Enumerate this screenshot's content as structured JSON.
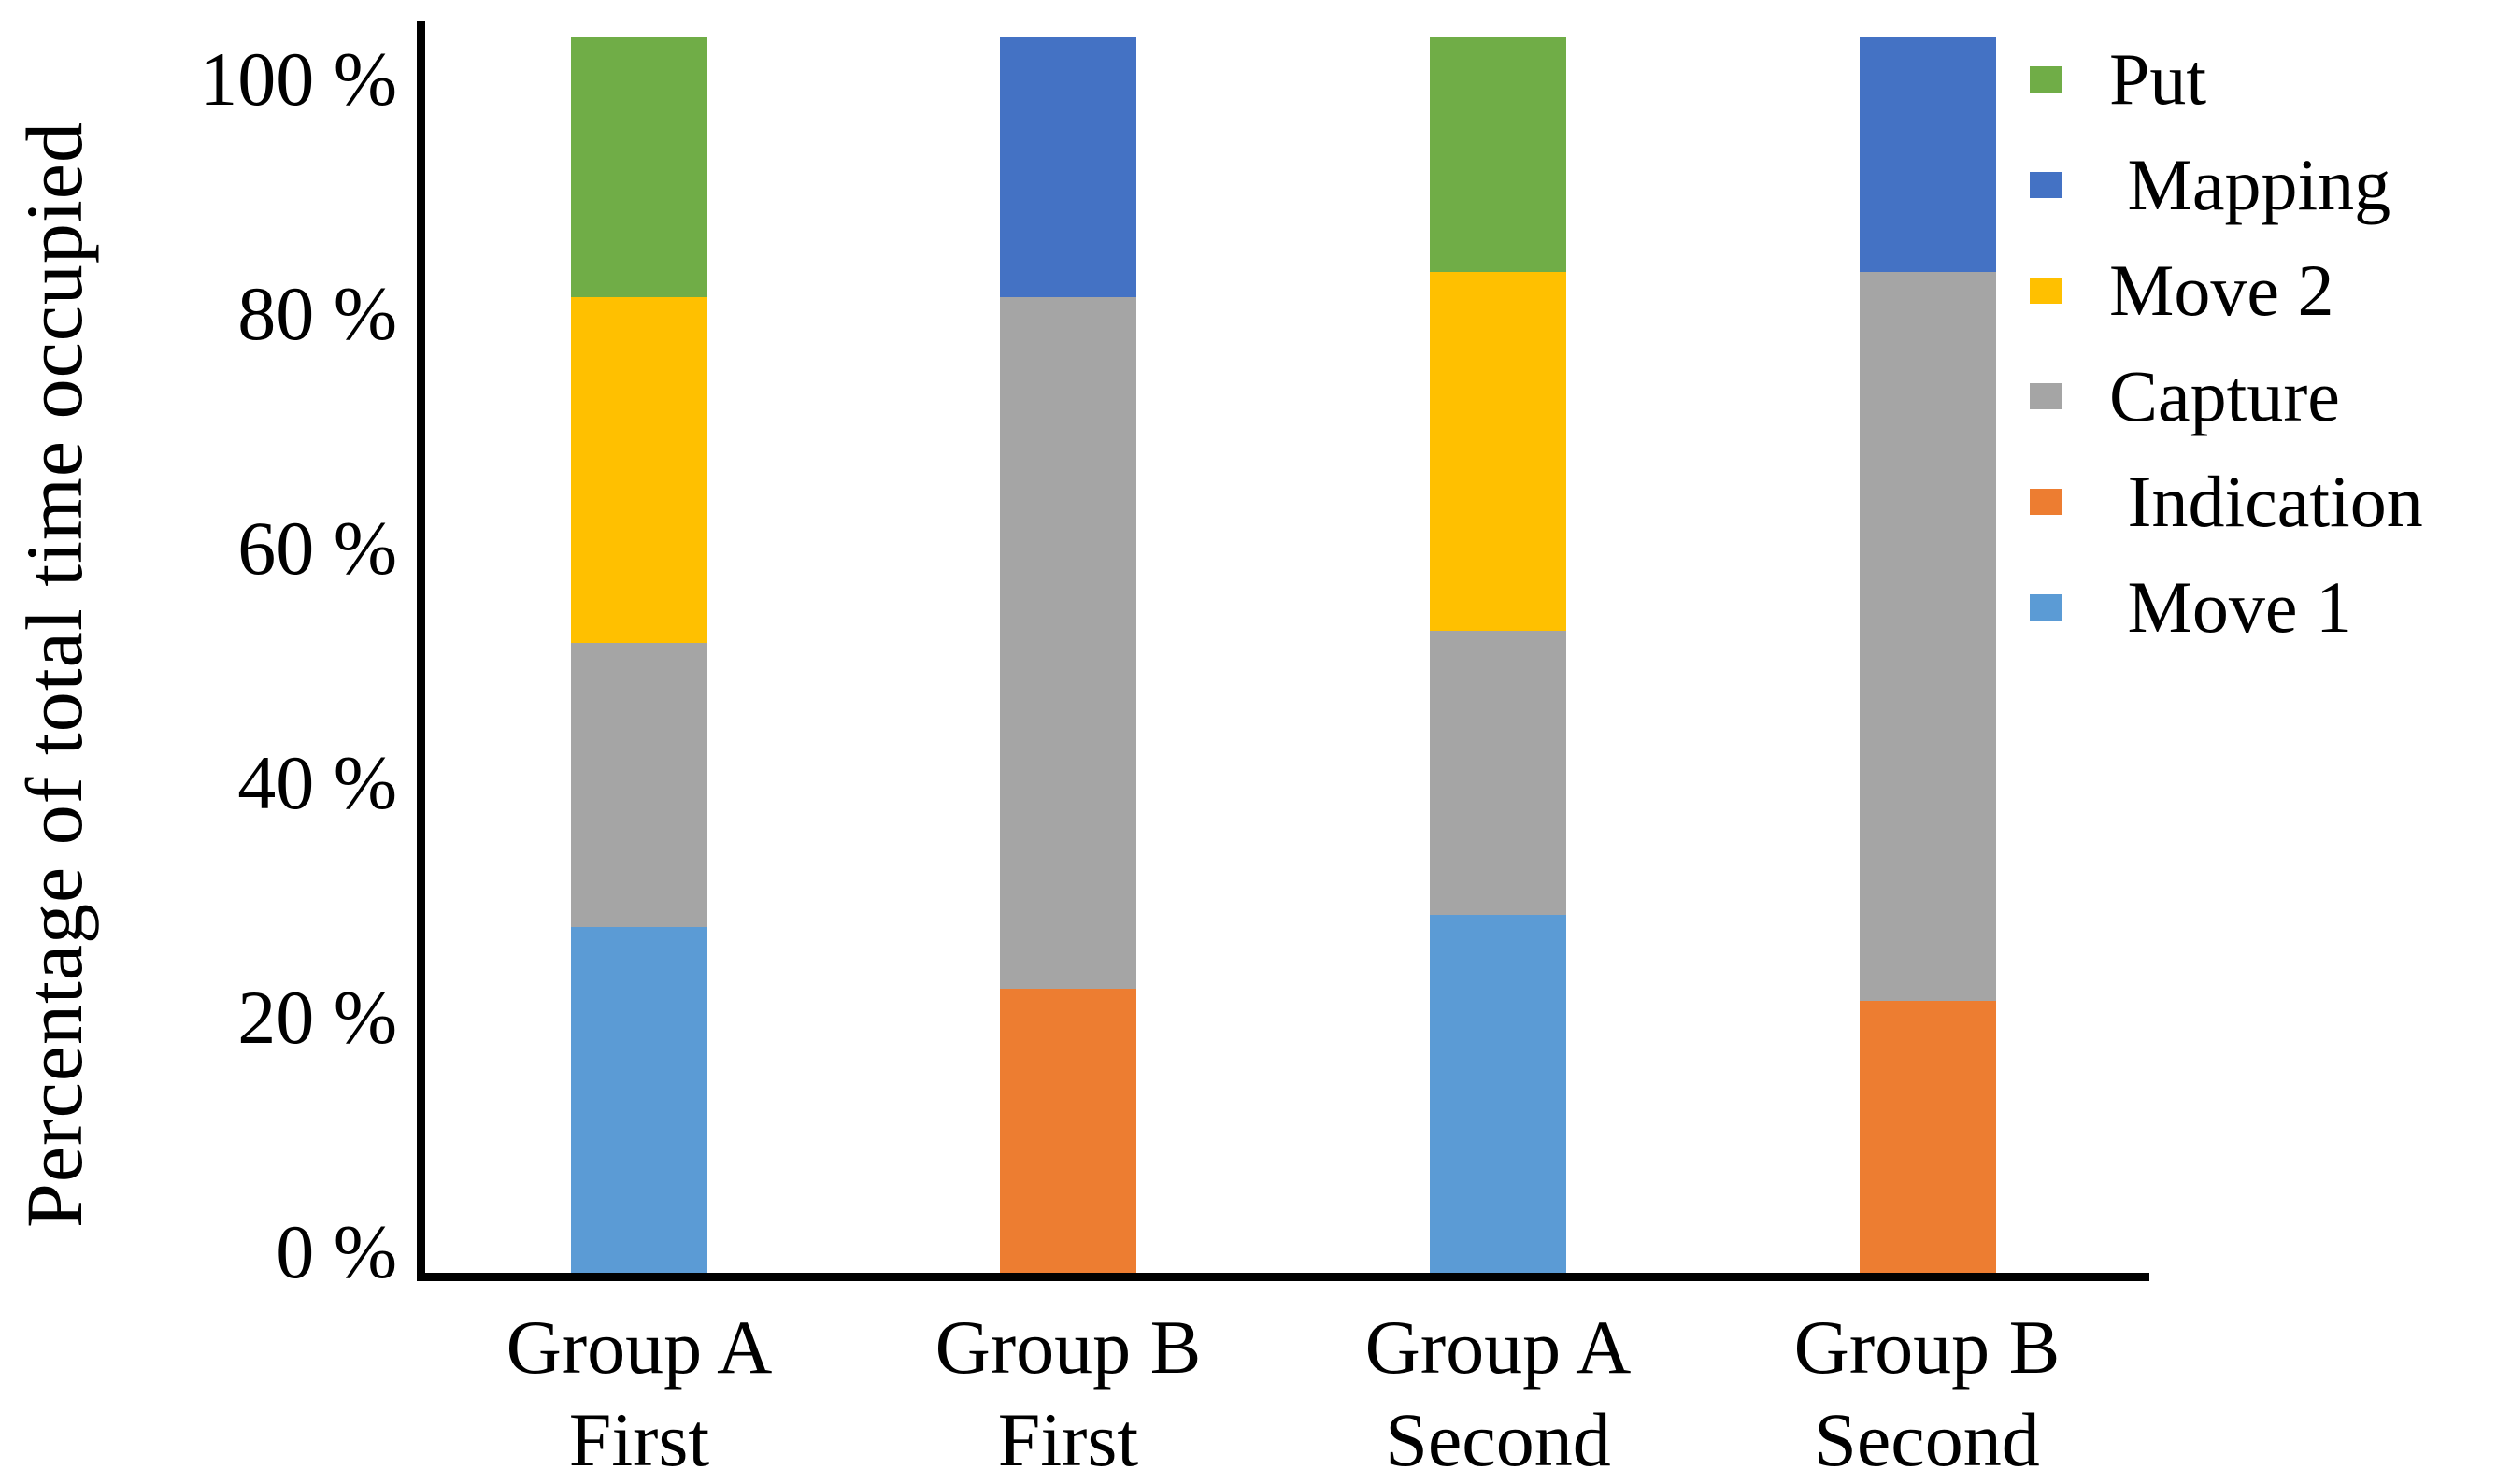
{
  "chart_data": {
    "type": "bar",
    "variant": "stacked-100-percent",
    "title": "",
    "xlabel": "",
    "ylabel": "Percentage of total time occupied",
    "ylim": [
      0,
      100
    ],
    "grid": false,
    "legend_position": "top-right",
    "ytick_values": [
      100,
      80,
      60,
      40,
      20,
      0
    ],
    "ytick_labels": [
      "100 %",
      "80 %",
      "60 %",
      "40 %",
      "20 %",
      "0 %"
    ],
    "categories": [
      {
        "id": "group-a-first",
        "line1": "Group A",
        "line2": "First"
      },
      {
        "id": "group-b-first",
        "line1": "Group B",
        "line2": "First"
      },
      {
        "id": "group-a-second",
        "line1": "Group A",
        "line2": "Second"
      },
      {
        "id": "group-b-second",
        "line1": "Group B",
        "line2": "Second"
      }
    ],
    "series": [
      {
        "name": "Put",
        "legend_label": "Put",
        "color": "#70AD47",
        "values": [
          21,
          0,
          19,
          0
        ]
      },
      {
        "name": "Mapping",
        "legend_label": " Mapping",
        "color": "#4472C4",
        "values": [
          0,
          21,
          0,
          19
        ]
      },
      {
        "name": "Move 2",
        "legend_label": "Move 2",
        "color": "#FFC000",
        "values": [
          28,
          0,
          29,
          0
        ]
      },
      {
        "name": "Capture",
        "legend_label": "Capture",
        "color": "#A5A5A5",
        "values": [
          23,
          56,
          23,
          59
        ]
      },
      {
        "name": "Indication",
        "legend_label": " Indication",
        "color": "#ED7D31",
        "values": [
          0,
          23,
          0,
          22
        ]
      },
      {
        "name": "Move 1",
        "legend_label": " Move 1",
        "color": "#5B9BD5",
        "values": [
          28,
          0,
          29,
          0
        ]
      }
    ],
    "stack_order_bottom_to_top": [
      "Move 1",
      "Indication",
      "Capture",
      "Move 2",
      "Mapping",
      "Put"
    ]
  },
  "colors": {
    "axis": "#000000",
    "background": "#FFFFFF"
  }
}
